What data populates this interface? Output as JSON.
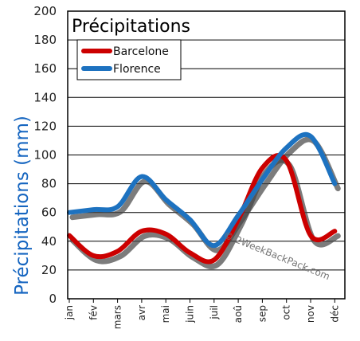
{
  "chart_data": {
    "type": "line",
    "title": "Précipitations",
    "ylabel": "Précipitations (mm)",
    "xlabel": "",
    "categories": [
      "jan",
      "fév",
      "mars",
      "avr",
      "mai",
      "juin",
      "juil",
      "aoû",
      "sep",
      "oct",
      "nov",
      "déc"
    ],
    "ylim": [
      0,
      200
    ],
    "yticks": [
      0,
      20,
      40,
      60,
      80,
      100,
      120,
      140,
      160,
      180,
      200
    ],
    "grid": true,
    "legend": "top-left",
    "series": [
      {
        "name": "Barcelone",
        "color": "#cc0000",
        "values": [
          44,
          30,
          33,
          47,
          45,
          32,
          27,
          55,
          91,
          96,
          44,
          47
        ]
      },
      {
        "name": "Florence",
        "color": "#1d72c0",
        "values": [
          60,
          62,
          64,
          85,
          69,
          55,
          37,
          58,
          83,
          105,
          113,
          80
        ]
      }
    ],
    "watermark": "© 2WeekBackPack.com"
  }
}
